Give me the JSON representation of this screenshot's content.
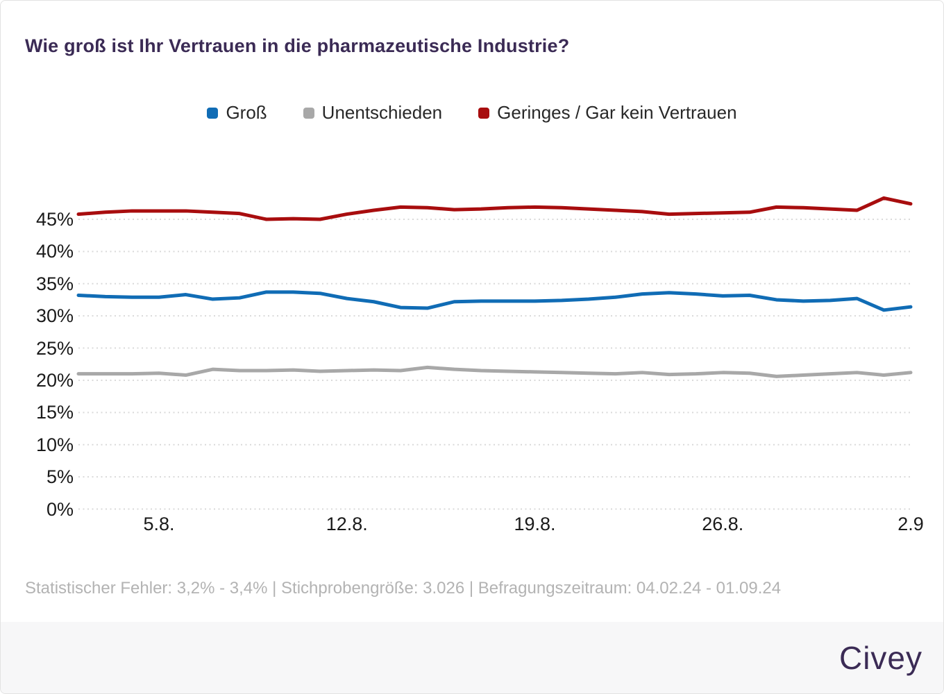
{
  "card": {
    "footnote": "Statistischer Fehler: 3,2% - 3,4% | Stichprobengröße: 3.026 | Befragungszeitraum: 04.02.24 - 01.09.24",
    "brand": "Civey"
  },
  "colors": {
    "title": "#3b2b55",
    "axis_text": "#1a1a1a",
    "grid": "#d9d9d9",
    "footnote_text": "#b3b3b3",
    "footer_band": "#f7f7f8",
    "card_border": "#e2e2e2"
  },
  "chart_data": {
    "type": "line",
    "title": "Wie groß ist Ihr Vertrauen in die pharmazeutische Industrie?",
    "ylabel": "",
    "xlabel": "",
    "ylim": [
      0,
      50
    ],
    "grid": "horizontal-dotted",
    "legend_position": "top",
    "yticks": [
      {
        "value": 0,
        "label": "0%"
      },
      {
        "value": 5,
        "label": "5%"
      },
      {
        "value": 10,
        "label": "10%"
      },
      {
        "value": 15,
        "label": "15%"
      },
      {
        "value": 20,
        "label": "20%"
      },
      {
        "value": 25,
        "label": "25%"
      },
      {
        "value": 30,
        "label": "30%"
      },
      {
        "value": 35,
        "label": "35%"
      },
      {
        "value": 40,
        "label": "40%"
      },
      {
        "value": 45,
        "label": "45%"
      }
    ],
    "xticks": [
      {
        "index": 3,
        "label": "5.8."
      },
      {
        "index": 10,
        "label": "12.8."
      },
      {
        "index": 17,
        "label": "19.8."
      },
      {
        "index": 24,
        "label": "26.8."
      },
      {
        "index": 31,
        "label": "2.9"
      }
    ],
    "series": [
      {
        "name": "Groß",
        "color": "#106cb5",
        "values": [
          33.2,
          33.0,
          32.9,
          32.9,
          33.3,
          32.6,
          32.8,
          33.7,
          33.7,
          33.5,
          32.7,
          32.2,
          31.3,
          31.2,
          32.2,
          32.3,
          32.3,
          32.3,
          32.4,
          32.6,
          32.9,
          33.4,
          33.6,
          33.4,
          33.1,
          33.2,
          32.5,
          32.3,
          32.4,
          32.7,
          30.9,
          31.4
        ]
      },
      {
        "name": "Unentschieden",
        "color": "#a8a8a8",
        "values": [
          21.0,
          21.0,
          21.0,
          21.1,
          20.8,
          21.7,
          21.5,
          21.5,
          21.6,
          21.4,
          21.5,
          21.6,
          21.5,
          22.0,
          21.7,
          21.5,
          21.4,
          21.3,
          21.2,
          21.1,
          21.0,
          21.2,
          20.9,
          21.0,
          21.2,
          21.1,
          20.6,
          20.8,
          21.0,
          21.2,
          20.8,
          21.2
        ]
      },
      {
        "name": "Geringes / Gar kein Vertrauen",
        "color": "#a80d0e",
        "values": [
          45.8,
          46.1,
          46.3,
          46.3,
          46.3,
          46.1,
          45.9,
          45.0,
          45.1,
          45.0,
          45.8,
          46.4,
          46.9,
          46.8,
          46.5,
          46.6,
          46.8,
          46.9,
          46.8,
          46.6,
          46.4,
          46.2,
          45.8,
          45.9,
          46.0,
          46.1,
          46.9,
          46.8,
          46.6,
          46.4,
          48.3,
          47.4
        ]
      }
    ]
  }
}
